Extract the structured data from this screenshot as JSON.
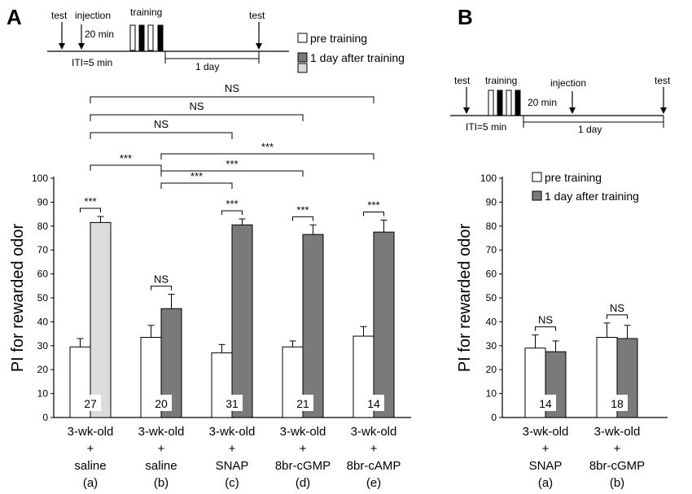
{
  "panels": {
    "a": {
      "letter": "A",
      "protocol": {
        "test_start": "test",
        "injection": "injection",
        "delay": "20 min",
        "training": "training",
        "test_end": "test",
        "iti": "ITI=5 min",
        "interval": "1 day"
      },
      "legend": [
        "pre training",
        "1 day after training",
        "1 day after training"
      ],
      "stats_ns": "NS",
      "stats_sig": "***"
    },
    "b": {
      "letter": "B",
      "protocol": {
        "test_start": "test",
        "training": "training",
        "injection": "injection",
        "delay": "20 min",
        "test_end": "test",
        "iti": "ITI=5 min",
        "interval": "1 day"
      },
      "legend": [
        "pre training",
        "1 day after training"
      ],
      "stats_ns": "NS"
    }
  },
  "colors": {
    "pre": "#ffffff",
    "post": "#7a7a7a",
    "post_light": "#dcdcdc",
    "axis": "#000000",
    "text": "#000000"
  },
  "chart_data": [
    {
      "type": "bar",
      "panel": "A",
      "xlabel": "",
      "ylabel": "PI for rewarded odor",
      "ylim": [
        0,
        100
      ],
      "yticks": [
        0,
        10,
        20,
        30,
        40,
        50,
        60,
        70,
        80,
        90,
        100
      ],
      "categories": [
        [
          "3-wk-old",
          "+",
          "saline",
          "(a)"
        ],
        [
          "3-wk-old",
          "+",
          "saline",
          "(b)"
        ],
        [
          "3-wk-old",
          "+",
          "SNAP",
          "(c)"
        ],
        [
          "3-wk-old",
          "+",
          "8br-cGMP",
          "(d)"
        ],
        [
          "3-wk-old",
          "+",
          "8br-cAMP",
          "(e)"
        ]
      ],
      "n": [
        "27",
        "20",
        "31",
        "21",
        "14"
      ],
      "series": [
        {
          "name": "pre training",
          "values": [
            29.5,
            33.5,
            27,
            29.5,
            34
          ],
          "errors": [
            3.5,
            5,
            3.5,
            2.5,
            4
          ]
        },
        {
          "name": "1 day after training",
          "values": [
            81.5,
            45.5,
            80.5,
            76.5,
            77.5
          ],
          "errors": [
            2.5,
            6,
            2.5,
            4,
            5
          ]
        }
      ],
      "post_light_groups": [
        0
      ],
      "within_sig": [
        "***",
        "NS",
        "***",
        "***",
        "***"
      ],
      "between_comparisons": [
        {
          "from": 0,
          "to": 4,
          "label": "NS"
        },
        {
          "from": 0,
          "to": 3,
          "label": "NS"
        },
        {
          "from": 0,
          "to": 2,
          "label": "NS"
        },
        {
          "from": 1,
          "to": 4,
          "label": "***"
        },
        {
          "from": 0,
          "to": 1,
          "label": "***"
        },
        {
          "from": 1,
          "to": 3,
          "label": "***"
        },
        {
          "from": 1,
          "to": 2,
          "label": "***"
        }
      ]
    },
    {
      "type": "bar",
      "panel": "B",
      "xlabel": "",
      "ylabel": "PI for rewarded odor",
      "ylim": [
        0,
        100
      ],
      "yticks": [
        0,
        10,
        20,
        30,
        40,
        50,
        60,
        70,
        80,
        90,
        100
      ],
      "categories": [
        [
          "3-wk-old",
          "+",
          "SNAP",
          "(a)"
        ],
        [
          "3-wk-old",
          "+",
          "8br-cGMP",
          "(b)"
        ]
      ],
      "n": [
        "14",
        "18"
      ],
      "series": [
        {
          "name": "pre training",
          "values": [
            29,
            33.5
          ],
          "errors": [
            5.5,
            6
          ]
        },
        {
          "name": "1 day after training",
          "values": [
            27.5,
            33
          ],
          "errors": [
            4.5,
            5.5
          ]
        }
      ],
      "post_light_groups": [],
      "within_sig": [
        "NS",
        "NS"
      ],
      "between_comparisons": []
    }
  ]
}
